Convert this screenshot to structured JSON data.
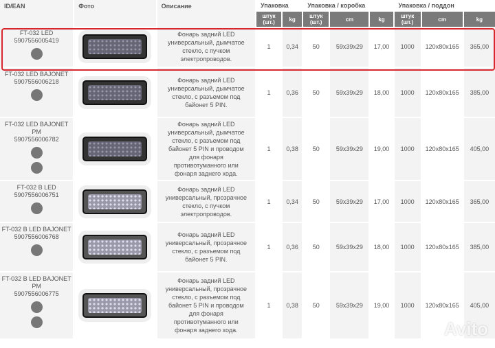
{
  "headers": {
    "id": "ID/EAN",
    "photo": "Фото",
    "desc": "Описание",
    "pack": "Упаковка",
    "box": "Упаковка / коробка",
    "pallet": "Упаковка / поддон",
    "qty": "штук (шт.)",
    "kg": "kg",
    "cm": "cm"
  },
  "accent": "#d7262e",
  "rows": [
    {
      "id": "FT-032 LED",
      "ean": "5907556005419",
      "icons": [
        "wire-icon"
      ],
      "glass": "smoked",
      "desc": "Фонарь задний LED универсальный, дымчатое стекло, с пучком электропроводов.",
      "c": [
        "1",
        "0,34",
        "50",
        "59x39x29",
        "17,00",
        "1000",
        "120x80x165",
        "365,00"
      ]
    },
    {
      "id": "FT-032 LED BAJONET",
      "ean": "5907556006218",
      "icons": [
        "bayonet-connector-icon"
      ],
      "glass": "smoked",
      "desc": "Фонарь задний LED универсальный, дымчатое стекло, с разъемом под байонет 5 PIN.",
      "c": [
        "1",
        "0,36",
        "50",
        "59x39x29",
        "18,00",
        "1000",
        "120x80x165",
        "385,00"
      ]
    },
    {
      "id": "FT-032 LED BAJONET PM",
      "ean": "5907556006782",
      "icons": [
        "bayonet-connector-icon",
        "wire-icon"
      ],
      "glass": "smoked",
      "desc": "Фонарь задний LED универсальный, дымчатое стекло, с разъемом под байонет 5 PIN и проводом для фонаря противотуманного или фонаря заднего хода.",
      "c": [
        "1",
        "0,38",
        "50",
        "59x39x29",
        "19,00",
        "1000",
        "120x80x165",
        "405,00"
      ]
    },
    {
      "id": "FT-032 B LED",
      "ean": "5907556006751",
      "icons": [
        "wire-icon"
      ],
      "glass": "clear",
      "desc": "Фонарь задний LED универсальный, прозрачное стекло, с пучком электропроводов.",
      "c": [
        "1",
        "0,34",
        "50",
        "59x39x29",
        "17,00",
        "1000",
        "120x80x165",
        "365,00"
      ]
    },
    {
      "id": "FT-032 B LED BAJONET",
      "ean": "5907556006768",
      "icons": [
        "bayonet-connector-icon"
      ],
      "glass": "clear",
      "desc": "Фонарь задний LED универсальный, прозрачное стекло, с разъемом под байонет 5 PIN.",
      "c": [
        "1",
        "0,36",
        "50",
        "59x39x29",
        "18,00",
        "1000",
        "120x80x165",
        "385,00"
      ]
    },
    {
      "id": "FT-032 B LED BAJONET PM",
      "ean": "5907556006775",
      "icons": [
        "bayonet-connector-icon",
        "wire-icon"
      ],
      "glass": "clear",
      "desc": "Фонарь задний LED универсальный, прозрачное стекло, с разъемом под байонет 5 PIN и проводом для фонаря противотуманного или фонаря заднего хода.",
      "c": [
        "1",
        "0,38",
        "50",
        "59x39x29",
        "19,00",
        "1000",
        "120x80x165",
        "405,00"
      ]
    }
  ],
  "watermark": "Avito"
}
